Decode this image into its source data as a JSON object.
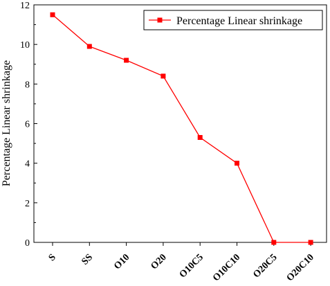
{
  "chart_data": {
    "type": "line",
    "title": "",
    "xlabel": "",
    "ylabel": "Percentage Linear shrinkage",
    "categories": [
      "S",
      "SS",
      "O10",
      "O20",
      "O10C5",
      "O10C10",
      "O20C5",
      "O20C10"
    ],
    "series": [
      {
        "name": "Percentage Linear shrinkage",
        "values": [
          11.5,
          9.9,
          9.2,
          8.4,
          5.3,
          4.0,
          0.0,
          0.0
        ],
        "color": "#ff0000",
        "marker": "square"
      }
    ],
    "ylim": [
      0,
      12
    ],
    "yticks": [
      "0",
      "2",
      "4",
      "6",
      "8",
      "10",
      "12"
    ],
    "grid": false,
    "legend_position": "top-right"
  }
}
